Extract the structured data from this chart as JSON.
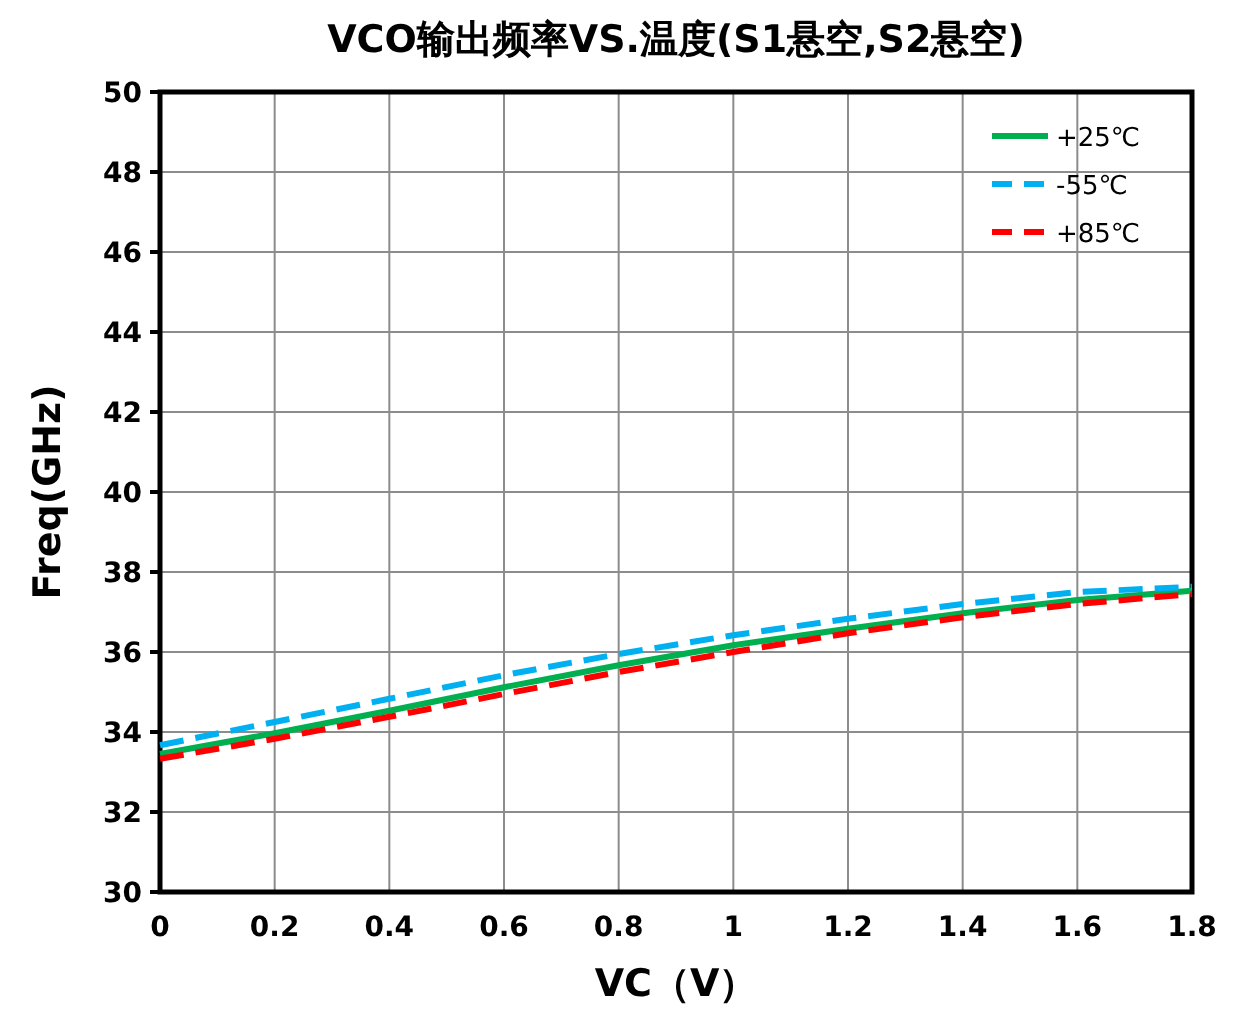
{
  "chart_data": {
    "type": "line",
    "title": "VCO输出频率VS.温度(S1悬空,S2悬空)",
    "xlabel": "VC（V）",
    "ylabel": "Freq(GHz)",
    "x": [
      0,
      0.2,
      0.4,
      0.6,
      0.8,
      1.0,
      1.2,
      1.4,
      1.6,
      1.8
    ],
    "xlim": [
      0,
      1.8
    ],
    "xticks": [
      0,
      0.2,
      0.4,
      0.6,
      0.8,
      1,
      1.2,
      1.4,
      1.6,
      1.8
    ],
    "ylim": [
      30,
      50
    ],
    "yticks": [
      30,
      32,
      34,
      36,
      38,
      40,
      42,
      44,
      46,
      48,
      50
    ],
    "grid": true,
    "legend": "top right",
    "marker": "none",
    "series": [
      {
        "name": "+25℃",
        "color": "#00b050",
        "line_style": "solid",
        "values": [
          33.45,
          33.97,
          34.53,
          35.12,
          35.67,
          36.17,
          36.58,
          36.97,
          37.3,
          37.53
        ]
      },
      {
        "name": "-55℃",
        "color": "#00b0f0",
        "line_style": "dashed",
        "values": [
          33.67,
          34.25,
          34.83,
          35.42,
          35.95,
          36.42,
          36.83,
          37.2,
          37.5,
          37.63
        ]
      },
      {
        "name": "+85℃",
        "color": "#ff0000",
        "line_style": "dashed",
        "values": [
          33.33,
          33.83,
          34.38,
          34.95,
          35.5,
          36.0,
          36.47,
          36.87,
          37.2,
          37.45
        ]
      }
    ]
  }
}
